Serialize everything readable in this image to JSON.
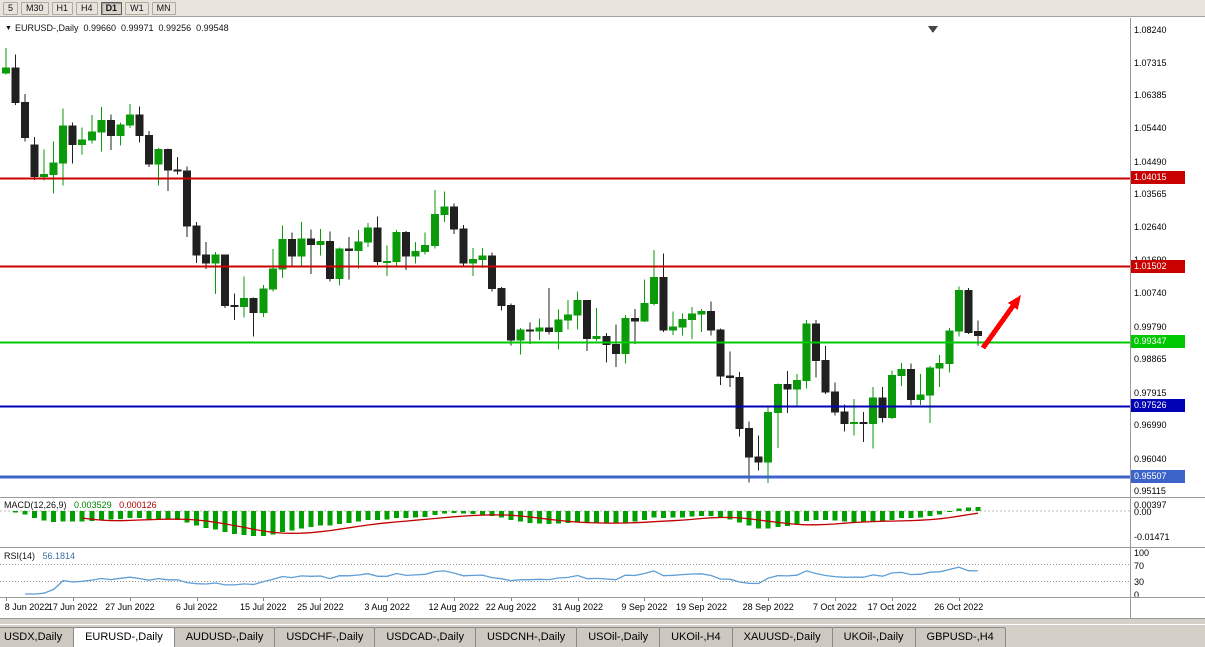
{
  "toolbar": {
    "timeframes": [
      {
        "label": "5",
        "active": false
      },
      {
        "label": "M30",
        "active": false
      },
      {
        "label": "H1",
        "active": false
      },
      {
        "label": "H4",
        "active": false
      },
      {
        "label": "D1",
        "active": true
      },
      {
        "label": "W1",
        "active": false
      },
      {
        "label": "MN",
        "active": false
      }
    ]
  },
  "chart_title": {
    "symbol": "EURUSD-,Daily",
    "open": "0.99660",
    "high": "0.99971",
    "low": "0.99256",
    "close": "0.99548"
  },
  "price_axis_labels": [
    "1.08240",
    "1.07315",
    "1.06385",
    "1.05440",
    "1.04490",
    "1.03565",
    "1.02640",
    "1.01690",
    "1.00740",
    "0.99790",
    "0.98865",
    "0.97915",
    "0.96990",
    "0.96040",
    "0.95115"
  ],
  "chart_data": {
    "type": "candlestick",
    "symbol": "EURUSD-,Daily",
    "colors": {
      "up": "#0A9A0A",
      "down": "#202020"
    },
    "y_axis": {
      "min": 0.9446,
      "max": 1.0861
    },
    "hlines": [
      {
        "value": 1.04015,
        "label": "1.04015",
        "color": "#C80000",
        "width": 2
      },
      {
        "value": 1.01502,
        "label": "1.01502",
        "color": "#C80000",
        "width": 2
      },
      {
        "value": 0.99347,
        "label": "0.99347",
        "color": "#00C800",
        "width": 2
      },
      {
        "value": 0.97526,
        "label": "0.97526",
        "color": "#0000B4",
        "width": 2
      },
      {
        "value": 0.95507,
        "label": "0.95507",
        "color": "#3C64C8",
        "width": 3
      }
    ],
    "annotation_arrow": {
      "color": "#FF0000"
    },
    "x_tick_labels": [
      {
        "i": 0,
        "t": "8 Jun 2022"
      },
      {
        "i": 7,
        "t": "17 Jun 2022"
      },
      {
        "i": 13,
        "t": "27 Jun 2022"
      },
      {
        "i": 20,
        "t": "6 Jul 2022"
      },
      {
        "i": 27,
        "t": "15 Jul 2022"
      },
      {
        "i": 33,
        "t": "25 Jul 2022"
      },
      {
        "i": 40,
        "t": "3 Aug 2022"
      },
      {
        "i": 47,
        "t": "12 Aug 2022"
      },
      {
        "i": 53,
        "t": "22 Aug 2022"
      },
      {
        "i": 60,
        "t": "31 Aug 2022"
      },
      {
        "i": 67,
        "t": "9 Sep 2022"
      },
      {
        "i": 73,
        "t": "19 Sep 2022"
      },
      {
        "i": 80,
        "t": "28 Sep 2022"
      },
      {
        "i": 87,
        "t": "7 Oct 2022"
      },
      {
        "i": 93,
        "t": "17 Oct 2022"
      },
      {
        "i": 100,
        "t": "26 Oct 2022"
      }
    ],
    "candles": [
      [
        1.0702,
        1.0773,
        1.0697,
        1.0716
      ],
      [
        1.0716,
        1.0754,
        1.0611,
        1.0617
      ],
      [
        1.0617,
        1.0642,
        1.0506,
        1.0518
      ],
      [
        1.0496,
        1.052,
        1.0397,
        1.0407
      ],
      [
        1.0407,
        1.0484,
        1.0396,
        1.0413
      ],
      [
        1.0413,
        1.0507,
        1.0359,
        1.0445
      ],
      [
        1.0445,
        1.0601,
        1.0381,
        1.0551
      ],
      [
        1.0551,
        1.056,
        1.0444,
        1.0498
      ],
      [
        1.0498,
        1.0547,
        1.0469,
        1.0511
      ],
      [
        1.0511,
        1.0582,
        1.0501,
        1.0533
      ],
      [
        1.0533,
        1.0605,
        1.0478,
        1.0566
      ],
      [
        1.0566,
        1.0583,
        1.0482,
        1.0523
      ],
      [
        1.0523,
        1.0561,
        1.0495,
        1.0553
      ],
      [
        1.0553,
        1.0614,
        1.0545,
        1.0582
      ],
      [
        1.0582,
        1.0606,
        1.0503,
        1.0524
      ],
      [
        1.0524,
        1.0536,
        1.0434,
        1.0442
      ],
      [
        1.0442,
        1.0488,
        1.0381,
        1.0484
      ],
      [
        1.0484,
        1.0486,
        1.0366,
        1.0426
      ],
      [
        1.0426,
        1.0462,
        1.0413,
        1.0422
      ],
      [
        1.0422,
        1.0436,
        1.0235,
        1.0266
      ],
      [
        1.0266,
        1.0277,
        1.0161,
        1.0184
      ],
      [
        1.0184,
        1.0221,
        1.0144,
        1.016
      ],
      [
        1.016,
        1.0192,
        1.0072,
        1.0183
      ],
      [
        1.0183,
        1.0185,
        1.0032,
        1.004
      ],
      [
        1.004,
        1.0074,
        0.9999,
        1.0037
      ],
      [
        1.0037,
        1.0122,
        1.0005,
        1.006
      ],
      [
        1.006,
        1.0063,
        0.9952,
        1.0019
      ],
      [
        1.0019,
        1.0098,
        1.0007,
        1.0086
      ],
      [
        1.0086,
        1.0201,
        1.008,
        1.0143
      ],
      [
        1.0143,
        1.0268,
        1.0118,
        1.0227
      ],
      [
        1.0227,
        1.0248,
        1.0154,
        1.018
      ],
      [
        1.018,
        1.0278,
        1.0152,
        1.0229
      ],
      [
        1.0229,
        1.0256,
        1.013,
        1.0213
      ],
      [
        1.0213,
        1.0258,
        1.0182,
        1.0222
      ],
      [
        1.0222,
        1.025,
        1.0108,
        1.0116
      ],
      [
        1.0116,
        1.0205,
        1.0097,
        1.0201
      ],
      [
        1.0201,
        1.0234,
        1.0113,
        1.0196
      ],
      [
        1.0196,
        1.0254,
        1.0145,
        1.022
      ],
      [
        1.022,
        1.0274,
        1.0206,
        1.026
      ],
      [
        1.026,
        1.0293,
        1.0155,
        1.0165
      ],
      [
        1.0165,
        1.021,
        1.0123,
        1.0165
      ],
      [
        1.0165,
        1.0254,
        1.0151,
        1.0247
      ],
      [
        1.0247,
        1.0252,
        1.0141,
        1.0181
      ],
      [
        1.0181,
        1.0221,
        1.0159,
        1.0194
      ],
      [
        1.0194,
        1.0248,
        1.0185,
        1.0211
      ],
      [
        1.0211,
        1.0368,
        1.0202,
        1.0298
      ],
      [
        1.0298,
        1.0364,
        1.0277,
        1.032
      ],
      [
        1.032,
        1.033,
        1.0243,
        1.0258
      ],
      [
        1.0258,
        1.0269,
        1.0153,
        1.016
      ],
      [
        1.016,
        1.0203,
        1.0124,
        1.0171
      ],
      [
        1.0171,
        1.0203,
        1.0146,
        1.018
      ],
      [
        1.018,
        1.0191,
        1.0079,
        1.0088
      ],
      [
        1.0088,
        1.0092,
        1.0026,
        1.0039
      ],
      [
        1.0039,
        1.0046,
        0.9926,
        0.9942
      ],
      [
        0.9942,
        0.9976,
        0.99,
        0.997
      ],
      [
        0.997,
        0.9991,
        0.993,
        0.9967
      ],
      [
        0.9967,
        1.0003,
        0.9941,
        0.9975
      ],
      [
        0.9975,
        1.009,
        0.9957,
        0.9965
      ],
      [
        0.9965,
        1.0028,
        0.9914,
        0.9998
      ],
      [
        0.9998,
        1.0055,
        0.9972,
        1.0012
      ],
      [
        1.0012,
        1.0079,
        0.9972,
        1.0054
      ],
      [
        1.0054,
        1.0055,
        0.991,
        0.9945
      ],
      [
        0.9945,
        1.0033,
        0.9939,
        0.9952
      ],
      [
        0.9952,
        0.9962,
        0.9878,
        0.9929
      ],
      [
        0.9929,
        0.9986,
        0.9864,
        0.9903
      ],
      [
        0.9903,
        1.0013,
        0.9875,
        1.0002
      ],
      [
        1.0002,
        1.0029,
        0.993,
        0.9995
      ],
      [
        0.9995,
        1.0113,
        0.9993,
        1.0045
      ],
      [
        1.0045,
        1.0198,
        1.004,
        1.012
      ],
      [
        1.012,
        1.0187,
        0.9964,
        0.997
      ],
      [
        0.997,
        1.0023,
        0.9955,
        0.9979
      ],
      [
        0.9979,
        1.0017,
        0.9954,
        1.0
      ],
      [
        1.0,
        1.0036,
        0.9944,
        1.0016
      ],
      [
        1.0016,
        1.0029,
        0.9964,
        1.0023
      ],
      [
        1.0023,
        1.0051,
        0.9954,
        0.997
      ],
      [
        0.997,
        0.9974,
        0.9813,
        0.9839
      ],
      [
        0.9839,
        0.9908,
        0.9807,
        0.9835
      ],
      [
        0.9835,
        0.9851,
        0.9667,
        0.969
      ],
      [
        0.969,
        0.9709,
        0.9536,
        0.9608
      ],
      [
        0.9608,
        0.967,
        0.957,
        0.9594
      ],
      [
        0.9594,
        0.975,
        0.9534,
        0.9735
      ],
      [
        0.9735,
        0.9817,
        0.9634,
        0.9815
      ],
      [
        0.9815,
        0.9853,
        0.9733,
        0.9802
      ],
      [
        0.9802,
        0.9844,
        0.9752,
        0.9826
      ],
      [
        0.9826,
        0.9999,
        0.9804,
        0.9987
      ],
      [
        0.9987,
        0.9998,
        0.9835,
        0.9883
      ],
      [
        0.9883,
        0.9925,
        0.9787,
        0.9793
      ],
      [
        0.9793,
        0.9821,
        0.9726,
        0.9737
      ],
      [
        0.9737,
        0.9758,
        0.9681,
        0.9703
      ],
      [
        0.9703,
        0.9774,
        0.967,
        0.9707
      ],
      [
        0.9707,
        0.9737,
        0.9651,
        0.9704
      ],
      [
        0.9704,
        0.9807,
        0.9632,
        0.9776
      ],
      [
        0.9776,
        0.9808,
        0.9707,
        0.9721
      ],
      [
        0.9721,
        0.9854,
        0.9717,
        0.984
      ],
      [
        0.984,
        0.9876,
        0.9811,
        0.9857
      ],
      [
        0.9857,
        0.9874,
        0.9757,
        0.9772
      ],
      [
        0.9772,
        0.9845,
        0.9756,
        0.9785
      ],
      [
        0.9785,
        0.9868,
        0.9705,
        0.9861
      ],
      [
        0.9861,
        0.9899,
        0.9808,
        0.9874
      ],
      [
        0.9874,
        0.9976,
        0.9849,
        0.9967
      ],
      [
        0.9967,
        1.0094,
        0.9951,
        1.0082
      ],
      [
        1.0082,
        1.0089,
        0.9959,
        0.9963
      ],
      [
        0.9966,
        0.99971,
        0.99256,
        0.99548
      ]
    ]
  },
  "macd": {
    "name": "MACD(12,26,9)",
    "value_main": "0.003529",
    "value_signal": "0.000126",
    "axis_labels": [
      "0.00397",
      "0.00",
      "-0.01471"
    ],
    "colors": {
      "hist": "#00A000",
      "signal": "#C00000"
    }
  },
  "rsi": {
    "name": "RSI(14)",
    "value": "56.1814",
    "axis_labels": [
      "100",
      "70",
      "30",
      "0"
    ],
    "levels": [
      70,
      30
    ],
    "color": "#5F9ED6"
  },
  "tabs": [
    {
      "label": "USDX,Daily",
      "active": false
    },
    {
      "label": "EURUSD-,Daily",
      "active": true
    },
    {
      "label": "AUDUSD-,Daily",
      "active": false
    },
    {
      "label": "USDCHF-,Daily",
      "active": false
    },
    {
      "label": "USDCAD-,Daily",
      "active": false
    },
    {
      "label": "USDCNH-,Daily",
      "active": false
    },
    {
      "label": "USOil-,Daily",
      "active": false
    },
    {
      "label": "UKOil-,H4",
      "active": false
    },
    {
      "label": "XAUUSD-,Daily",
      "active": false
    },
    {
      "label": "UKOil-,Daily",
      "active": false
    },
    {
      "label": "GBPUSD-,H4",
      "active": false
    }
  ]
}
